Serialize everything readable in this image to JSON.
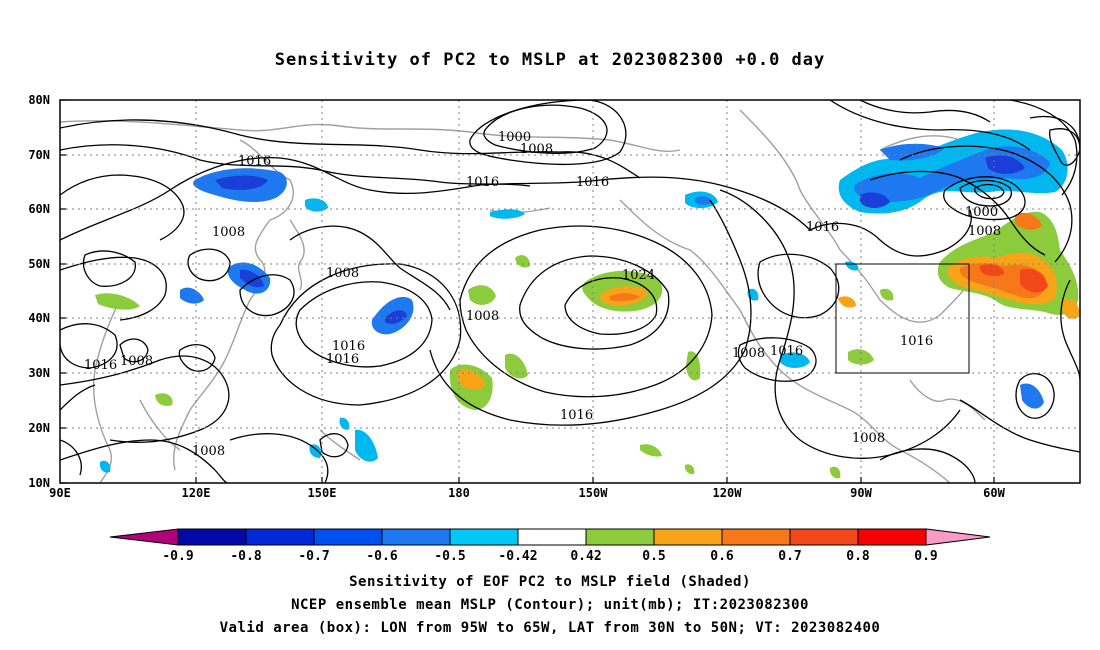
{
  "title": "Sensitivity of PC2 to MSLP at 2023082300 +0.0 day",
  "map": {
    "lat_ticks": [
      "80N",
      "70N",
      "60N",
      "50N",
      "40N",
      "30N",
      "20N",
      "10N"
    ],
    "lon_ticks": [
      "90E",
      "120E",
      "150E",
      "180",
      "150W",
      "120W",
      "90W",
      "60W"
    ],
    "valid_box": {
      "lon_min": -95,
      "lon_max": -65,
      "lat_min": 30,
      "lat_max": 50
    },
    "contour_labels": [
      "1000",
      "1008",
      "1016",
      "1016",
      "1016",
      "1008",
      "1008",
      "1024",
      "1008",
      "1016",
      "1016",
      "1008",
      "1016",
      "1008",
      "1016",
      "1000",
      "1008",
      "1016",
      "1016",
      "1016",
      "1008",
      "1008",
      "1016",
      "1008"
    ],
    "colors": {
      "contour": "#000000",
      "coast": "#a0a0a0",
      "grid": "#808080",
      "neg_strong": "#1a3ed8",
      "neg_mid": "#1e78f0",
      "neg_weak": "#00b8f0",
      "pos_weak": "#8ccc3c",
      "pos_mid": "#f7a418",
      "pos_strong": "#f0501e"
    }
  },
  "colorbar": {
    "labels": [
      "-0.9",
      "-0.8",
      "-0.7",
      "-0.6",
      "-0.5",
      "-0.42",
      "0.42",
      "0.5",
      "0.6",
      "0.7",
      "0.8",
      "0.9"
    ],
    "colors": [
      "#0008a8",
      "#0028d8",
      "#0050f0",
      "#1e78f0",
      "#00c8f8",
      "#ffffff",
      "#8ccc3c",
      "#f7a418",
      "#f77818",
      "#f04818",
      "#f80000"
    ],
    "low_extend_color": "#b0007a",
    "high_extend_color": "#f89bc8"
  },
  "captions": [
    "Sensitivity of EOF PC2 to MSLP field (Shaded)",
    "NCEP ensemble mean MSLP (Contour); unit(mb); IT:2023082300",
    "Valid area (box): LON from 95W to 65W, LAT from 30N to 50N; VT: 2023082400"
  ]
}
